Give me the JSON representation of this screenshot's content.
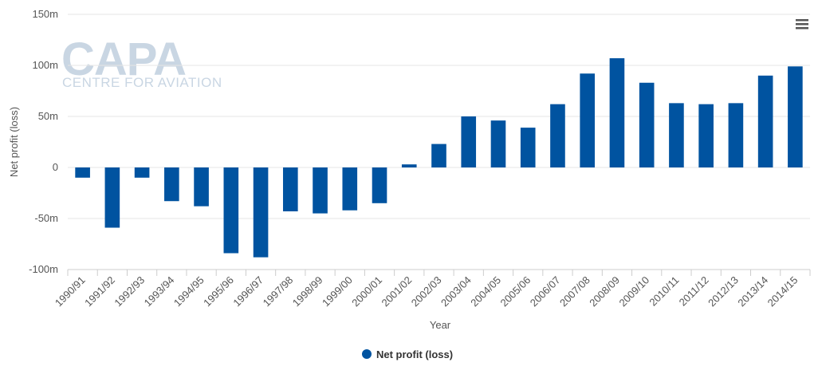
{
  "watermark": {
    "logo_text": "CAPA",
    "tagline": "CENTRE FOR AVIATION"
  },
  "menu": {
    "icon": "hamburger-menu-icon"
  },
  "colors": {
    "bar": "#0053a0",
    "grid": "#e6e6e6",
    "axis": "#cccccc"
  },
  "chart_data": {
    "type": "bar",
    "xlabel": "Year",
    "ylabel": "Net profit (loss)",
    "ylim": [
      -100,
      150
    ],
    "yticks": [
      -100,
      -50,
      0,
      50,
      100,
      150
    ],
    "ytick_labels": [
      "-100m",
      "-50m",
      "0",
      "50m",
      "100m",
      "150m"
    ],
    "grid": true,
    "legend_position": "bottom-center",
    "categories": [
      "1990/91",
      "1991/92",
      "1992/93",
      "1993/94",
      "1994/95",
      "1995/96",
      "1996/97",
      "1997/98",
      "1998/99",
      "1999/00",
      "2000/01",
      "2001/02",
      "2002/03",
      "2003/04",
      "2004/05",
      "2005/06",
      "2006/07",
      "2007/08",
      "2008/09",
      "2009/10",
      "2010/11",
      "2011/12",
      "2012/13",
      "2013/14",
      "2014/15"
    ],
    "series": [
      {
        "name": "Net profit (loss)",
        "values": [
          -10,
          -59,
          -10,
          -33,
          -38,
          -84,
          -88,
          -43,
          -45,
          -42,
          -35,
          3,
          23,
          50,
          46,
          39,
          62,
          92,
          107,
          83,
          63,
          62,
          63,
          90,
          99
        ]
      }
    ]
  }
}
